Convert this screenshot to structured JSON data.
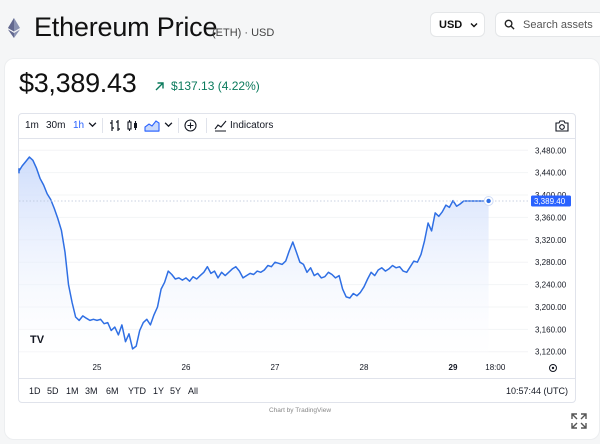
{
  "header": {
    "title": "Ethereum Price",
    "subtitle": "(ETH) · USD",
    "currency": "USD",
    "search_placeholder": "Search assets"
  },
  "price": {
    "value": "$3,389.43",
    "change": "$137.13 (4.22%)",
    "direction": "up",
    "change_color": "#0a7a5c"
  },
  "toolbar": {
    "intervals": [
      "1m",
      "30m",
      "1h"
    ],
    "active_interval": "1h",
    "indicators_label": "Indicators"
  },
  "ranges": {
    "items": [
      "1D",
      "5D",
      "1M",
      "3M",
      "6M",
      "YTD",
      "1Y",
      "5Y",
      "All"
    ],
    "clock": "10:57:44 (UTC)"
  },
  "footer": {
    "credit": "Chart by TradingView"
  },
  "colors": {
    "line": "#2f6fe4",
    "accent": "#2962ff",
    "fill_top": "#c9d9fb",
    "fill_bottom": "#ffffff"
  },
  "chart_data": {
    "type": "area",
    "title": "",
    "xlabel": "",
    "ylabel": "",
    "ylim": [
      3100,
      3500
    ],
    "y_ticks": [
      "3,480.00",
      "3,440.00",
      "3,400.00",
      "3,360.00",
      "3,320.00",
      "3,280.00",
      "3,240.00",
      "3,200.00",
      "3,160.00",
      "3,120.00"
    ],
    "x_ticks": [
      "25",
      "26",
      "27",
      "28",
      "29",
      "18:00"
    ],
    "bold_x_tick": "29",
    "last_value_label": "3,389.40",
    "series": [
      {
        "x": [
          24.0,
          24.04,
          24.08,
          24.12,
          24.16,
          24.2,
          24.24,
          24.28,
          24.32,
          24.36,
          24.4,
          24.44,
          24.48,
          24.52,
          24.56,
          24.6,
          24.64,
          24.68,
          24.72,
          24.76,
          24.8,
          24.84,
          24.88,
          24.92,
          24.96,
          25.0,
          25.04,
          25.08,
          25.12,
          25.16,
          25.2,
          25.24,
          25.28,
          25.32,
          25.36,
          25.4,
          25.44,
          25.48,
          25.52,
          25.56,
          25.6,
          25.64,
          25.68,
          25.72,
          25.76,
          25.8,
          25.84,
          25.88,
          25.92,
          25.96,
          26.0,
          26.04,
          26.08,
          26.12,
          26.16,
          26.2,
          26.24,
          26.28,
          26.32,
          26.36,
          26.4,
          26.44,
          26.48,
          26.52,
          26.56,
          26.6,
          26.64,
          26.68,
          26.72,
          26.76,
          26.8,
          26.84,
          26.88,
          26.92,
          26.96,
          27.0,
          27.04,
          27.08,
          27.12,
          27.16,
          27.2,
          27.24,
          27.28,
          27.32,
          27.36,
          27.4,
          27.44,
          27.48,
          27.52,
          27.56,
          27.6,
          27.64,
          27.68,
          27.72,
          27.76,
          27.8,
          27.84,
          27.88,
          27.92,
          27.96,
          28.0,
          28.04,
          28.08,
          28.12,
          28.16,
          28.2,
          28.24,
          28.28,
          28.32,
          28.36,
          28.4,
          28.44,
          28.48,
          28.52,
          28.56,
          28.6,
          28.64,
          28.68,
          28.72,
          28.76,
          28.8,
          28.84,
          28.88,
          28.92,
          28.96,
          29.0,
          29.04,
          29.08,
          29.12,
          29.16,
          29.2,
          29.24,
          29.28,
          29.32,
          29.36,
          29.4
        ],
        "values": [
          3448,
          3442,
          3440,
          3443,
          3452,
          3460,
          3468,
          3462,
          3448,
          3430,
          3418,
          3402,
          3392,
          3376,
          3358,
          3337,
          3298,
          3240,
          3208,
          3182,
          3176,
          3184,
          3180,
          3176,
          3178,
          3176,
          3178,
          3170,
          3172,
          3158,
          3164,
          3150,
          3168,
          3138,
          3152,
          3125,
          3130,
          3158,
          3172,
          3178,
          3168,
          3186,
          3200,
          3232,
          3244,
          3264,
          3258,
          3250,
          3252,
          3248,
          3252,
          3246,
          3254,
          3250,
          3256,
          3262,
          3272,
          3260,
          3264,
          3252,
          3262,
          3256,
          3262,
          3268,
          3272,
          3264,
          3252,
          3256,
          3260,
          3258,
          3264,
          3262,
          3266,
          3274,
          3272,
          3280,
          3278,
          3276,
          3282,
          3300,
          3316,
          3298,
          3280,
          3276,
          3262,
          3270,
          3256,
          3260,
          3252,
          3254,
          3262,
          3258,
          3252,
          3256,
          3232,
          3218,
          3216,
          3224,
          3220,
          3226,
          3236,
          3250,
          3262,
          3256,
          3266,
          3270,
          3264,
          3268,
          3274,
          3270,
          3272,
          3264,
          3262,
          3272,
          3282,
          3280,
          3294,
          3318,
          3350,
          3336,
          3368,
          3362,
          3370,
          3382,
          3378,
          3390,
          3380,
          3384,
          3389.4,
          3389.4,
          3389.4,
          3389.4,
          3389.4,
          3389.4,
          3389.4,
          3389.4
        ]
      }
    ]
  }
}
